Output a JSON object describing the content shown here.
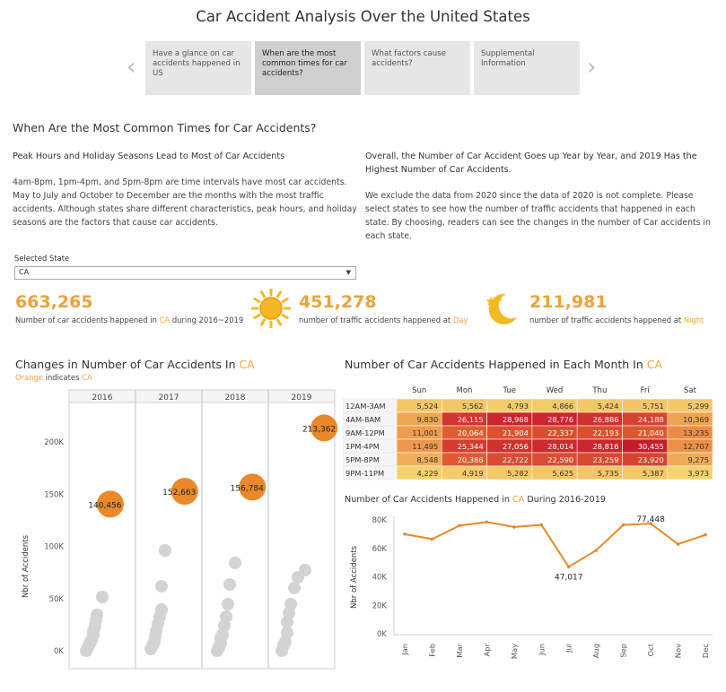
{
  "title": "Car Accident Analysis Over the United States",
  "nav": {
    "prev_arrow": "‹",
    "next_arrow": "›",
    "items": [
      {
        "label": "Have a glance on car accidents happened in US"
      },
      {
        "label": "When are the most common times for car accidents?"
      },
      {
        "label": "What factors cause accidents?"
      },
      {
        "label": "Supplemental Information"
      }
    ]
  },
  "section_title": "When Are the Most Common Times for Car Accidents?",
  "left_text": {
    "heading": "Peak Hours and Holiday Seasons Lead to Most of Car Accidents",
    "body": "4am-8pm, 1pm-4pm, and 5pm-8pm are time intervals have most car accidents. May to July and October to December are the months with the most traffic accidents. Although states share different characteristics, peak hours, and holiday seasons are the factors that cause car accidents."
  },
  "right_text": {
    "heading": "Overall, the Number of Car Accident Goes up Year by Year, and 2019 Has the Highest Number of Car Accidents.",
    "body": "We exclude the data from 2020 since the data of 2020 is not complete. Please select states to see how the number of traffic accidents that happened in each state. By choosing, readers can see the changes in the number of Car accidents in each state."
  },
  "filter": {
    "label": "Selected State",
    "value": "CA"
  },
  "kpis": {
    "total": {
      "value": "663,265",
      "caption_prefix": "Number of car accidents happened in ",
      "caption_highlight": "CA",
      "caption_suffix": " during 2016~2019"
    },
    "day": {
      "value": "451,278",
      "caption_prefix": "number of traffic accidents happened at ",
      "caption_highlight": "Day"
    },
    "night": {
      "value": "211,981",
      "caption_prefix": "number of traffic accidents happened at ",
      "caption_highlight": "Night"
    }
  },
  "colors": {
    "accent": "#f0a13c",
    "dot_orange": "#e9892a",
    "dot_gray": "#d3d3d3"
  },
  "yearly_chart": {
    "title_prefix": "Changes in Number of Car Accidents  In ",
    "title_highlight": "CA",
    "subtitle_prefix": "Orange",
    "subtitle_mid": " indicates ",
    "subtitle_highlight": "CA",
    "ylabel": "Nbr of Accidents",
    "yticks": [
      "0K",
      "50K",
      "100K",
      "150K",
      "200K"
    ],
    "years": [
      "2016",
      "2017",
      "2018",
      "2019"
    ],
    "highlight_values": [
      140456,
      152663,
      156784,
      213362
    ],
    "highlight_labels": [
      "140,456",
      "152,663",
      "156,784",
      "213,362"
    ]
  },
  "heatmap": {
    "title_prefix": "Number of Car Accidents Happened in Each Month In ",
    "title_highlight": "CA",
    "days": [
      "Sun",
      "Mon",
      "Tue",
      "Wed",
      "Thu",
      "Fri",
      "Sat"
    ],
    "rows": [
      {
        "label": "12AM-3AM",
        "values": [
          "5,524",
          "5,562",
          "4,793",
          "4,866",
          "5,424",
          "5,751",
          "5,299"
        ],
        "nums": [
          5524,
          5562,
          4793,
          4866,
          5424,
          5751,
          5299
        ]
      },
      {
        "label": "4AM-8AM",
        "values": [
          "9,830",
          "26,115",
          "28,968",
          "28,776",
          "26,886",
          "24,188",
          "10,369"
        ],
        "nums": [
          9830,
          26115,
          28968,
          28776,
          26886,
          24188,
          10369
        ]
      },
      {
        "label": "9AM-12PM",
        "values": [
          "11,001",
          "20,064",
          "21,904",
          "22,337",
          "22,193",
          "21,040",
          "13,235"
        ],
        "nums": [
          11001,
          20064,
          21904,
          22337,
          22193,
          21040,
          13235
        ]
      },
      {
        "label": "1PM-4PM",
        "values": [
          "11,495",
          "25,344",
          "27,056",
          "28,014",
          "28,816",
          "30,455",
          "12,707"
        ],
        "nums": [
          11495,
          25344,
          27056,
          28014,
          28816,
          30455,
          12707
        ]
      },
      {
        "label": "5PM-8PM",
        "values": [
          "8,548",
          "20,386",
          "22,722",
          "22,590",
          "23,259",
          "23,920",
          "9,275"
        ],
        "nums": [
          8548,
          20386,
          22722,
          22590,
          23259,
          23920,
          9275
        ]
      },
      {
        "label": "9PM-11PM",
        "values": [
          "4,229",
          "4,919",
          "5,282",
          "5,625",
          "5,735",
          "5,387",
          "3,973"
        ],
        "nums": [
          4229,
          4919,
          5282,
          5625,
          5735,
          5387,
          3973
        ]
      }
    ]
  },
  "monthly_chart": {
    "title_prefix": "Number of Car Accidents Happened in ",
    "title_highlight": "CA",
    "title_suffix": " During 2016-2019",
    "ylabel": "Nbr of Accidents",
    "yticks": [
      "0K",
      "20K",
      "40K",
      "60K",
      "80K"
    ],
    "months": [
      "Jan",
      "Feb",
      "Mar",
      "Apr",
      "May",
      "Jun",
      "Jul",
      "Aug",
      "Sep",
      "Oct",
      "Nov",
      "Dec"
    ],
    "values": [
      70000,
      66500,
      76000,
      78500,
      75000,
      76500,
      47017,
      58500,
      76500,
      77448,
      63000,
      69500
    ],
    "labels": {
      "6": "47,017",
      "9": "77,448"
    }
  },
  "chart_data": [
    {
      "type": "scatter",
      "title": "Changes in Number of Car Accidents  In CA",
      "ylabel": "Nbr of Accidents",
      "ylim": [
        0,
        230000
      ],
      "categories": [
        "2016",
        "2017",
        "2018",
        "2019"
      ],
      "series": [
        {
          "name": "CA",
          "values": [
            140456,
            152663,
            156784,
            213362
          ]
        }
      ]
    },
    {
      "type": "heatmap",
      "title": "Number of Car Accidents Happened in Each Month In CA",
      "x": [
        "Sun",
        "Mon",
        "Tue",
        "Wed",
        "Thu",
        "Fri",
        "Sat"
      ],
      "y": [
        "12AM-3AM",
        "4AM-8AM",
        "9AM-12PM",
        "1PM-4PM",
        "5PM-8PM",
        "9PM-11PM"
      ],
      "values": [
        [
          5524,
          5562,
          4793,
          4866,
          5424,
          5751,
          5299
        ],
        [
          9830,
          26115,
          28968,
          28776,
          26886,
          24188,
          10369
        ],
        [
          11001,
          20064,
          21904,
          22337,
          22193,
          21040,
          13235
        ],
        [
          11495,
          25344,
          27056,
          28014,
          28816,
          30455,
          12707
        ],
        [
          8548,
          20386,
          22722,
          22590,
          23259,
          23920,
          9275
        ],
        [
          4229,
          4919,
          5282,
          5625,
          5735,
          5387,
          3973
        ]
      ]
    },
    {
      "type": "line",
      "title": "Number of Car Accidents Happened in CA During 2016-2019",
      "ylabel": "Nbr of Accidents",
      "ylim": [
        0,
        85000
      ],
      "categories": [
        "Jan",
        "Feb",
        "Mar",
        "Apr",
        "May",
        "Jun",
        "Jul",
        "Aug",
        "Sep",
        "Oct",
        "Nov",
        "Dec"
      ],
      "values": [
        70000,
        66500,
        76000,
        78500,
        75000,
        76500,
        47017,
        58500,
        76500,
        77448,
        63000,
        69500
      ]
    }
  ]
}
